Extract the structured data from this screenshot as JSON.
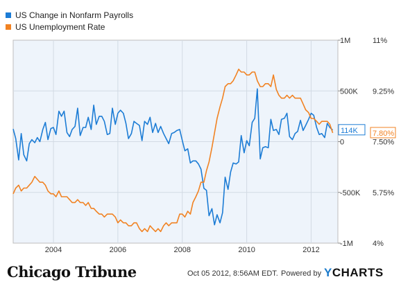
{
  "chart_data": {
    "type": "line",
    "title": "",
    "legend_position": "top-left",
    "grid": true,
    "series": [
      {
        "name": "US Change in Nonfarm Payrolls",
        "axis": "left",
        "color": "#1c7cd5",
        "points": [
          [
            2002.75,
            125
          ],
          [
            2002.83,
            30
          ],
          [
            2002.92,
            -180
          ],
          [
            2003.0,
            80
          ],
          [
            2003.08,
            -130
          ],
          [
            2003.17,
            -190
          ],
          [
            2003.25,
            -20
          ],
          [
            2003.33,
            20
          ],
          [
            2003.42,
            -10
          ],
          [
            2003.5,
            40
          ],
          [
            2003.58,
            0
          ],
          [
            2003.67,
            120
          ],
          [
            2003.75,
            190
          ],
          [
            2003.83,
            20
          ],
          [
            2003.92,
            130
          ],
          [
            2004.0,
            140
          ],
          [
            2004.08,
            70
          ],
          [
            2004.17,
            300
          ],
          [
            2004.25,
            250
          ],
          [
            2004.33,
            300
          ],
          [
            2004.42,
            90
          ],
          [
            2004.5,
            50
          ],
          [
            2004.58,
            120
          ],
          [
            2004.67,
            150
          ],
          [
            2004.75,
            330
          ],
          [
            2004.83,
            60
          ],
          [
            2004.92,
            140
          ],
          [
            2005.0,
            140
          ],
          [
            2005.08,
            240
          ],
          [
            2005.17,
            120
          ],
          [
            2005.25,
            360
          ],
          [
            2005.33,
            170
          ],
          [
            2005.42,
            250
          ],
          [
            2005.5,
            250
          ],
          [
            2005.58,
            200
          ],
          [
            2005.67,
            70
          ],
          [
            2005.75,
            80
          ],
          [
            2005.83,
            330
          ],
          [
            2005.92,
            170
          ],
          [
            2006.0,
            280
          ],
          [
            2006.08,
            310
          ],
          [
            2006.17,
            280
          ],
          [
            2006.25,
            180
          ],
          [
            2006.33,
            30
          ],
          [
            2006.42,
            80
          ],
          [
            2006.5,
            200
          ],
          [
            2006.58,
            180
          ],
          [
            2006.67,
            160
          ],
          [
            2006.75,
            10
          ],
          [
            2006.83,
            200
          ],
          [
            2006.92,
            170
          ],
          [
            2007.0,
            240
          ],
          [
            2007.08,
            90
          ],
          [
            2007.17,
            180
          ],
          [
            2007.25,
            90
          ],
          [
            2007.33,
            150
          ],
          [
            2007.42,
            80
          ],
          [
            2007.5,
            30
          ],
          [
            2007.58,
            -20
          ],
          [
            2007.67,
            80
          ],
          [
            2007.75,
            90
          ],
          [
            2007.83,
            110
          ],
          [
            2007.92,
            120
          ],
          [
            2008.0,
            10
          ],
          [
            2008.08,
            -90
          ],
          [
            2008.17,
            -70
          ],
          [
            2008.25,
            -210
          ],
          [
            2008.33,
            -190
          ],
          [
            2008.42,
            -190
          ],
          [
            2008.5,
            -220
          ],
          [
            2008.58,
            -270
          ],
          [
            2008.67,
            -460
          ],
          [
            2008.75,
            -480
          ],
          [
            2008.83,
            -730
          ],
          [
            2008.92,
            -660
          ],
          [
            2009.0,
            -820
          ],
          [
            2009.08,
            -720
          ],
          [
            2009.17,
            -800
          ],
          [
            2009.25,
            -700
          ],
          [
            2009.33,
            -350
          ],
          [
            2009.42,
            -470
          ],
          [
            2009.5,
            -300
          ],
          [
            2009.58,
            -210
          ],
          [
            2009.67,
            -220
          ],
          [
            2009.75,
            -200
          ],
          [
            2009.83,
            60
          ],
          [
            2009.92,
            -110
          ],
          [
            2010.0,
            10
          ],
          [
            2010.08,
            -40
          ],
          [
            2010.17,
            190
          ],
          [
            2010.25,
            230
          ],
          [
            2010.33,
            520
          ],
          [
            2010.42,
            -170
          ],
          [
            2010.5,
            -60
          ],
          [
            2010.58,
            -50
          ],
          [
            2010.67,
            -60
          ],
          [
            2010.75,
            220
          ],
          [
            2010.83,
            110
          ],
          [
            2010.92,
            120
          ],
          [
            2011.0,
            70
          ],
          [
            2011.08,
            220
          ],
          [
            2011.17,
            230
          ],
          [
            2011.25,
            280
          ],
          [
            2011.33,
            50
          ],
          [
            2011.42,
            20
          ],
          [
            2011.5,
            80
          ],
          [
            2011.58,
            100
          ],
          [
            2011.67,
            210
          ],
          [
            2011.75,
            110
          ],
          [
            2011.83,
            160
          ],
          [
            2011.92,
            220
          ],
          [
            2012.0,
            280
          ],
          [
            2012.08,
            260
          ],
          [
            2012.17,
            140
          ],
          [
            2012.25,
            70
          ],
          [
            2012.33,
            80
          ],
          [
            2012.42,
            40
          ],
          [
            2012.5,
            180
          ],
          [
            2012.58,
            140
          ],
          [
            2012.67,
            114
          ]
        ]
      },
      {
        "name": "US Unemployment Rate",
        "axis": "right",
        "color": "#f18222",
        "points": [
          [
            2002.75,
            5.7
          ],
          [
            2002.83,
            5.9
          ],
          [
            2002.92,
            6.0
          ],
          [
            2003.0,
            5.8
          ],
          [
            2003.08,
            5.9
          ],
          [
            2003.17,
            5.9
          ],
          [
            2003.25,
            6.0
          ],
          [
            2003.33,
            6.1
          ],
          [
            2003.42,
            6.3
          ],
          [
            2003.5,
            6.2
          ],
          [
            2003.58,
            6.1
          ],
          [
            2003.67,
            6.1
          ],
          [
            2003.75,
            6.0
          ],
          [
            2003.83,
            5.8
          ],
          [
            2003.92,
            5.7
          ],
          [
            2004.0,
            5.7
          ],
          [
            2004.08,
            5.6
          ],
          [
            2004.17,
            5.8
          ],
          [
            2004.25,
            5.6
          ],
          [
            2004.33,
            5.6
          ],
          [
            2004.42,
            5.6
          ],
          [
            2004.5,
            5.5
          ],
          [
            2004.58,
            5.4
          ],
          [
            2004.67,
            5.4
          ],
          [
            2004.75,
            5.5
          ],
          [
            2004.83,
            5.4
          ],
          [
            2004.92,
            5.4
          ],
          [
            2005.0,
            5.3
          ],
          [
            2005.08,
            5.4
          ],
          [
            2005.17,
            5.2
          ],
          [
            2005.25,
            5.2
          ],
          [
            2005.33,
            5.1
          ],
          [
            2005.42,
            5.0
          ],
          [
            2005.5,
            5.0
          ],
          [
            2005.58,
            4.9
          ],
          [
            2005.67,
            5.0
          ],
          [
            2005.75,
            5.0
          ],
          [
            2005.83,
            5.0
          ],
          [
            2005.92,
            4.9
          ],
          [
            2006.0,
            4.7
          ],
          [
            2006.08,
            4.8
          ],
          [
            2006.17,
            4.7
          ],
          [
            2006.25,
            4.7
          ],
          [
            2006.33,
            4.6
          ],
          [
            2006.42,
            4.6
          ],
          [
            2006.5,
            4.7
          ],
          [
            2006.58,
            4.7
          ],
          [
            2006.67,
            4.5
          ],
          [
            2006.75,
            4.4
          ],
          [
            2006.83,
            4.5
          ],
          [
            2006.92,
            4.4
          ],
          [
            2007.0,
            4.6
          ],
          [
            2007.08,
            4.5
          ],
          [
            2007.17,
            4.4
          ],
          [
            2007.25,
            4.5
          ],
          [
            2007.33,
            4.4
          ],
          [
            2007.42,
            4.6
          ],
          [
            2007.5,
            4.7
          ],
          [
            2007.58,
            4.6
          ],
          [
            2007.67,
            4.7
          ],
          [
            2007.75,
            4.7
          ],
          [
            2007.83,
            4.7
          ],
          [
            2007.92,
            5.0
          ],
          [
            2008.0,
            5.0
          ],
          [
            2008.08,
            4.9
          ],
          [
            2008.17,
            5.1
          ],
          [
            2008.25,
            5.0
          ],
          [
            2008.33,
            5.4
          ],
          [
            2008.42,
            5.6
          ],
          [
            2008.5,
            5.8
          ],
          [
            2008.58,
            6.1
          ],
          [
            2008.67,
            6.1
          ],
          [
            2008.75,
            6.5
          ],
          [
            2008.83,
            6.8
          ],
          [
            2008.92,
            7.3
          ],
          [
            2009.0,
            7.8
          ],
          [
            2009.08,
            8.3
          ],
          [
            2009.17,
            8.7
          ],
          [
            2009.25,
            9.0
          ],
          [
            2009.33,
            9.4
          ],
          [
            2009.42,
            9.5
          ],
          [
            2009.5,
            9.5
          ],
          [
            2009.58,
            9.6
          ],
          [
            2009.67,
            9.8
          ],
          [
            2009.75,
            10.0
          ],
          [
            2009.83,
            9.9
          ],
          [
            2009.92,
            9.9
          ],
          [
            2010.0,
            9.8
          ],
          [
            2010.08,
            9.8
          ],
          [
            2010.17,
            9.9
          ],
          [
            2010.25,
            9.9
          ],
          [
            2010.33,
            9.6
          ],
          [
            2010.42,
            9.4
          ],
          [
            2010.5,
            9.4
          ],
          [
            2010.58,
            9.5
          ],
          [
            2010.67,
            9.5
          ],
          [
            2010.75,
            9.4
          ],
          [
            2010.83,
            9.8
          ],
          [
            2010.92,
            9.3
          ],
          [
            2011.0,
            9.1
          ],
          [
            2011.08,
            9.0
          ],
          [
            2011.17,
            9.0
          ],
          [
            2011.25,
            9.1
          ],
          [
            2011.33,
            9.0
          ],
          [
            2011.42,
            9.1
          ],
          [
            2011.5,
            9.0
          ],
          [
            2011.58,
            9.0
          ],
          [
            2011.67,
            9.0
          ],
          [
            2011.75,
            8.8
          ],
          [
            2011.83,
            8.6
          ],
          [
            2011.92,
            8.5
          ],
          [
            2012.0,
            8.3
          ],
          [
            2012.08,
            8.3
          ],
          [
            2012.17,
            8.2
          ],
          [
            2012.25,
            8.1
          ],
          [
            2012.33,
            8.2
          ],
          [
            2012.42,
            8.2
          ],
          [
            2012.5,
            8.2
          ],
          [
            2012.58,
            8.1
          ],
          [
            2012.67,
            7.8
          ]
        ]
      }
    ],
    "x_axis": {
      "range": [
        2002.75,
        2012.83
      ],
      "tick_values": [
        2004,
        2006,
        2008,
        2010,
        2012
      ],
      "tick_labels": [
        "2004",
        "2006",
        "2008",
        "2010",
        "2012"
      ]
    },
    "y_left": {
      "range": [
        -1000,
        1000
      ],
      "tick_values": [
        1000,
        500,
        0,
        -500,
        -1000
      ],
      "tick_labels": [
        "1M",
        "500K",
        "0",
        "-500K",
        "-1M"
      ]
    },
    "y_right": {
      "range": [
        4,
        11
      ],
      "tick_values": [
        11,
        9.25,
        7.5,
        5.75,
        4
      ],
      "tick_labels": [
        "11%",
        "9.25%",
        "7.50%",
        "5.75%",
        "4%"
      ]
    },
    "last_value_labels": [
      {
        "series": "US Change in Nonfarm Payrolls",
        "value": 114,
        "label": "114K",
        "color": "#1c7cd5"
      },
      {
        "series": "US Unemployment Rate",
        "value": 7.8,
        "label": "7.80%",
        "color": "#f18222"
      }
    ]
  },
  "footer": {
    "logo_text": "Chicago Tribune",
    "timestamp": "Oct 05 2012, 8:56AM EDT.",
    "powered_by": "Powered by",
    "ycharts_y": "Y",
    "ycharts_rest": "CHARTS"
  }
}
